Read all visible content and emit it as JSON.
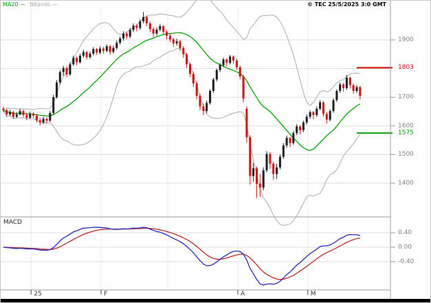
{
  "legend": {
    "ma20": "MA20 —",
    "bbands": "BBands —"
  },
  "copyright": "© TEC 25/5/2025 3:0 GMT",
  "macd_label": "MACD",
  "colors": {
    "ma20": "#00a000",
    "bbands": "#aaaaaa",
    "candle_up": "#1a1a1a",
    "candle_down": "#cc1111",
    "resistance": "#cc0000",
    "support": "#009900",
    "macd_line": "#2222bb",
    "macd_signal": "#bb2222",
    "grid": "#dddddd",
    "grid_vertical": "#ececec",
    "axis_text": "#808080",
    "axis_line": "#999999",
    "bottom_bar": "#000000"
  },
  "levels": {
    "resistance": {
      "value": 1803,
      "label": "1803"
    },
    "support": {
      "value": 1575,
      "label": "1575"
    }
  },
  "y_axis": {
    "tick_labels": [
      1900,
      1700,
      1600,
      1500,
      1400
    ],
    "gridlines": [
      1900,
      1800,
      1700,
      1600,
      1500,
      1400
    ]
  },
  "x_axis": {
    "labels": [
      {
        "text": "25",
        "index": 9
      },
      {
        "text": "F",
        "index": 30
      },
      {
        "text": "A",
        "index": 71
      },
      {
        "text": "M",
        "index": 92
      }
    ],
    "gridline_indices": [
      9,
      30,
      50,
      71,
      92
    ]
  },
  "macd_axis": {
    "ticks": [
      {
        "value": 0.4,
        "label": "0.40"
      },
      {
        "value": 0.0,
        "label": "0.00"
      },
      {
        "value": -0.4,
        "label": "-0.40"
      }
    ]
  },
  "chart_data": {
    "type": "candlestick",
    "title": "",
    "price_ylim": [
      1292,
      2018
    ],
    "indicators": {
      "ma": {
        "period": 20
      },
      "bollinger": {
        "period": 20,
        "stddev": 2
      },
      "macd": {
        "fast": 12,
        "slow": 26,
        "signal": 9,
        "display_divisor": 100
      }
    },
    "candles_ohlc": [
      [
        1660,
        1668,
        1648,
        1655
      ],
      [
        1655,
        1660,
        1632,
        1640
      ],
      [
        1640,
        1655,
        1635,
        1648
      ],
      [
        1648,
        1652,
        1625,
        1632
      ],
      [
        1632,
        1648,
        1628,
        1640
      ],
      [
        1640,
        1660,
        1636,
        1652
      ],
      [
        1652,
        1656,
        1630,
        1638
      ],
      [
        1638,
        1645,
        1620,
        1628
      ],
      [
        1628,
        1650,
        1624,
        1642
      ],
      [
        1642,
        1648,
        1628,
        1636
      ],
      [
        1636,
        1642,
        1612,
        1620
      ],
      [
        1620,
        1628,
        1602,
        1612
      ],
      [
        1612,
        1632,
        1606,
        1625
      ],
      [
        1625,
        1630,
        1608,
        1618
      ],
      [
        1618,
        1652,
        1614,
        1645
      ],
      [
        1645,
        1708,
        1640,
        1700
      ],
      [
        1700,
        1760,
        1695,
        1752
      ],
      [
        1752,
        1795,
        1745,
        1788
      ],
      [
        1788,
        1810,
        1775,
        1802
      ],
      [
        1802,
        1808,
        1770,
        1780
      ],
      [
        1780,
        1822,
        1775,
        1815
      ],
      [
        1815,
        1845,
        1810,
        1838
      ],
      [
        1838,
        1842,
        1812,
        1822
      ],
      [
        1822,
        1852,
        1818,
        1845
      ],
      [
        1845,
        1866,
        1838,
        1858
      ],
      [
        1858,
        1862,
        1832,
        1840
      ],
      [
        1840,
        1860,
        1834,
        1852
      ],
      [
        1852,
        1875,
        1846,
        1868
      ],
      [
        1868,
        1872,
        1848,
        1856
      ],
      [
        1856,
        1878,
        1850,
        1870
      ],
      [
        1870,
        1876,
        1852,
        1862
      ],
      [
        1862,
        1885,
        1856,
        1878
      ],
      [
        1878,
        1882,
        1848,
        1858
      ],
      [
        1858,
        1880,
        1852,
        1872
      ],
      [
        1872,
        1898,
        1866,
        1890
      ],
      [
        1890,
        1912,
        1884,
        1905
      ],
      [
        1905,
        1930,
        1898,
        1922
      ],
      [
        1922,
        1928,
        1902,
        1912
      ],
      [
        1912,
        1942,
        1906,
        1935
      ],
      [
        1935,
        1958,
        1928,
        1950
      ],
      [
        1950,
        1956,
        1930,
        1942
      ],
      [
        1942,
        1972,
        1936,
        1965
      ],
      [
        1965,
        1998,
        1958,
        1980
      ],
      [
        1980,
        1985,
        1948,
        1958
      ],
      [
        1958,
        1964,
        1928,
        1938
      ],
      [
        1938,
        1945,
        1910,
        1922
      ],
      [
        1922,
        1944,
        1915,
        1936
      ],
      [
        1936,
        1956,
        1930,
        1948
      ],
      [
        1948,
        1952,
        1918,
        1928
      ],
      [
        1928,
        1934,
        1902,
        1915
      ],
      [
        1915,
        1922,
        1892,
        1902
      ],
      [
        1902,
        1908,
        1876,
        1888
      ],
      [
        1888,
        1904,
        1880,
        1895
      ],
      [
        1895,
        1900,
        1862,
        1872
      ],
      [
        1872,
        1878,
        1838,
        1850
      ],
      [
        1850,
        1856,
        1802,
        1815
      ],
      [
        1815,
        1820,
        1770,
        1782
      ],
      [
        1782,
        1790,
        1736,
        1748
      ],
      [
        1748,
        1755,
        1692,
        1705
      ],
      [
        1705,
        1712,
        1655,
        1668
      ],
      [
        1668,
        1678,
        1638,
        1652
      ],
      [
        1652,
        1688,
        1645,
        1680
      ],
      [
        1680,
        1728,
        1674,
        1722
      ],
      [
        1722,
        1768,
        1716,
        1762
      ],
      [
        1762,
        1800,
        1755,
        1795
      ],
      [
        1795,
        1818,
        1788,
        1812
      ],
      [
        1812,
        1838,
        1805,
        1832
      ],
      [
        1832,
        1836,
        1808,
        1820
      ],
      [
        1820,
        1848,
        1814,
        1842
      ],
      [
        1842,
        1846,
        1818,
        1828
      ],
      [
        1828,
        1834,
        1795,
        1805
      ],
      [
        1805,
        1810,
        1762,
        1772
      ],
      [
        1772,
        1778,
        1682,
        1695
      ],
      [
        1660,
        1668,
        1542,
        1560
      ],
      [
        1560,
        1568,
        1395,
        1425
      ],
      [
        1425,
        1470,
        1405,
        1452
      ],
      [
        1452,
        1458,
        1348,
        1398
      ],
      [
        1398,
        1432,
        1352,
        1385
      ],
      [
        1385,
        1455,
        1375,
        1445
      ],
      [
        1445,
        1512,
        1438,
        1502
      ],
      [
        1502,
        1508,
        1450,
        1468
      ],
      [
        1468,
        1475,
        1412,
        1432
      ],
      [
        1432,
        1468,
        1415,
        1455
      ],
      [
        1455,
        1500,
        1448,
        1492
      ],
      [
        1492,
        1540,
        1485,
        1532
      ],
      [
        1532,
        1566,
        1524,
        1558
      ],
      [
        1558,
        1562,
        1526,
        1540
      ],
      [
        1540,
        1582,
        1534,
        1575
      ],
      [
        1575,
        1606,
        1568,
        1598
      ],
      [
        1598,
        1602,
        1570,
        1585
      ],
      [
        1585,
        1618,
        1578,
        1612
      ],
      [
        1612,
        1640,
        1605,
        1632
      ],
      [
        1632,
        1655,
        1625,
        1648
      ],
      [
        1648,
        1652,
        1624,
        1638
      ],
      [
        1638,
        1668,
        1632,
        1660
      ],
      [
        1660,
        1690,
        1654,
        1682
      ],
      [
        1682,
        1686,
        1632,
        1642
      ],
      [
        1642,
        1648,
        1608,
        1622
      ],
      [
        1622,
        1658,
        1616,
        1652
      ],
      [
        1652,
        1696,
        1646,
        1690
      ],
      [
        1690,
        1728,
        1684,
        1722
      ],
      [
        1722,
        1752,
        1715,
        1745
      ],
      [
        1745,
        1750,
        1720,
        1732
      ],
      [
        1732,
        1778,
        1726,
        1768
      ],
      [
        1768,
        1772,
        1730,
        1742
      ],
      [
        1742,
        1748,
        1712,
        1722
      ],
      [
        1722,
        1742,
        1715,
        1735
      ],
      [
        1735,
        1740,
        1692,
        1705
      ]
    ]
  }
}
